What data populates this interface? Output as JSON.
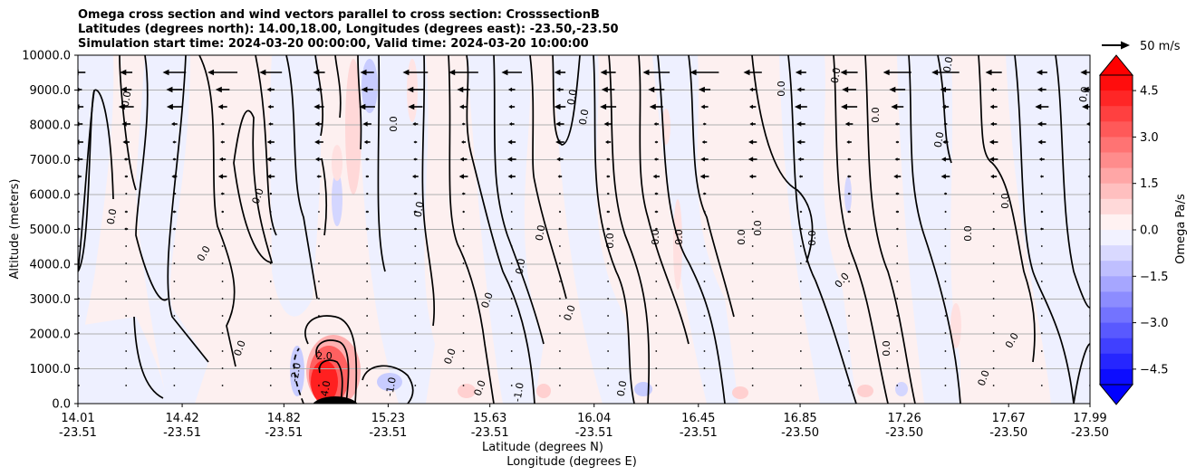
{
  "chart_data": {
    "type": "heatmap",
    "title_lines": [
      "Omega cross section and wind vectors parallel to cross section: CrosssectionB",
      "Latitudes (degrees north): 14.00,18.00, Longitudes (degrees east): -23.50,-23.50",
      "Simulation start time: 2024-03-20 00:00:00, Valid time: 2024-03-20 10:00:00"
    ],
    "ylabel": "Altitude (meters)",
    "xlabel_lat": "Latitude (degrees N)",
    "xlabel_lon": "Longitude (degrees E)",
    "ylim": [
      0,
      10000
    ],
    "y_ticks": [
      "0.0",
      "1000.0",
      "2000.0",
      "3000.0",
      "4000.0",
      "5000.0",
      "6000.0",
      "7000.0",
      "8000.0",
      "9000.0",
      "10000.0"
    ],
    "x_ticks": [
      {
        "lat": "14.01",
        "lon": "-23.51"
      },
      {
        "lat": "14.42",
        "lon": "-23.51"
      },
      {
        "lat": "14.82",
        "lon": "-23.51"
      },
      {
        "lat": "15.23",
        "lon": "-23.51"
      },
      {
        "lat": "15.63",
        "lon": "-23.51"
      },
      {
        "lat": "16.04",
        "lon": "-23.51"
      },
      {
        "lat": "16.45",
        "lon": "-23.51"
      },
      {
        "lat": "16.85",
        "lon": "-23.50"
      },
      {
        "lat": "17.26",
        "lon": "-23.50"
      },
      {
        "lat": "17.67",
        "lon": "-23.50"
      },
      {
        "lat": "17.99",
        "lon": "-23.50"
      }
    ],
    "colorbar": {
      "label": "Omega Pa/s",
      "range": [
        -5,
        5
      ],
      "ticks": [
        "4.5",
        "3.0",
        "1.5",
        "0.0",
        "−1.5",
        "−3.0",
        "−4.5"
      ],
      "levels": 20
    },
    "vector_key": {
      "label": "50 m/s",
      "speed": 50
    },
    "contour_labels": [
      "0.0",
      "0.0",
      "0.0",
      "0.0",
      "0.0",
      "0.0",
      "0.0",
      "0.0",
      "0.0",
      "0.0",
      "0.0",
      "0.0",
      "0.0",
      "0.0",
      "0.0",
      "0.0",
      "0.0",
      "0.0",
      "0.0",
      "0.0",
      "0.0",
      "0.0",
      "0.0",
      "0.0",
      "0.0",
      "0.0",
      "2.0",
      "-2.0",
      "4.0",
      "-1.0",
      "-1.0",
      "0.0",
      "0.0",
      "0.0"
    ],
    "colors": {
      "positive": "#ff0000",
      "negative": "#0000ff",
      "neutral": "#ffffff",
      "contour": "#000000"
    }
  }
}
